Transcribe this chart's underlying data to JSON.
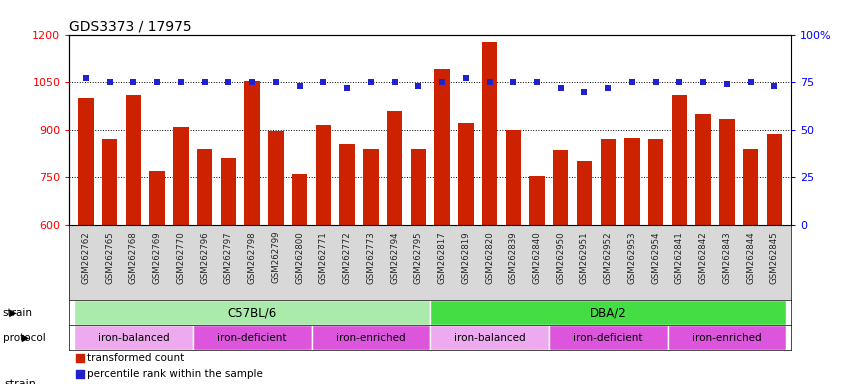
{
  "title": "GDS3373 / 17975",
  "samples": [
    "GSM262762",
    "GSM262765",
    "GSM262768",
    "GSM262769",
    "GSM262770",
    "GSM262796",
    "GSM262797",
    "GSM262798",
    "GSM262799",
    "GSM262800",
    "GSM262771",
    "GSM262772",
    "GSM262773",
    "GSM262794",
    "GSM262795",
    "GSM262817",
    "GSM262819",
    "GSM262820",
    "GSM262839",
    "GSM262840",
    "GSM262950",
    "GSM262951",
    "GSM262952",
    "GSM262953",
    "GSM262954",
    "GSM262841",
    "GSM262842",
    "GSM262843",
    "GSM262844",
    "GSM262845"
  ],
  "bar_values": [
    1000,
    870,
    1010,
    770,
    910,
    840,
    810,
    1055,
    895,
    760,
    915,
    855,
    840,
    960,
    840,
    1090,
    920,
    1175,
    900,
    755,
    835,
    800,
    870,
    875,
    870,
    1010,
    950,
    935,
    840,
    885
  ],
  "percentile_values": [
    77,
    75,
    75,
    75,
    75,
    75,
    75,
    75,
    75,
    73,
    75,
    72,
    75,
    75,
    73,
    75,
    77,
    75,
    75,
    75,
    72,
    70,
    72,
    75,
    75,
    75,
    75,
    74,
    75,
    73
  ],
  "ylim_left": [
    600,
    1200
  ],
  "ylim_right": [
    0,
    100
  ],
  "yticks_left": [
    600,
    750,
    900,
    1050,
    1200
  ],
  "yticks_right": [
    0,
    25,
    50,
    75,
    100
  ],
  "ytick_right_labels": [
    "0",
    "25",
    "50",
    "75",
    "100%"
  ],
  "bar_color": "#cc2200",
  "dot_color": "#2222cc",
  "bg_color": "#ffffff",
  "strain_groups": [
    {
      "label": "C57BL/6",
      "start": 0,
      "end": 15,
      "color": "#aaeaaa"
    },
    {
      "label": "DBA/2",
      "start": 15,
      "end": 30,
      "color": "#44dd44"
    }
  ],
  "protocol_groups": [
    {
      "label": "iron-balanced",
      "start": 0,
      "end": 5,
      "color": "#eeaaee"
    },
    {
      "label": "iron-deficient",
      "start": 5,
      "end": 10,
      "color": "#dd55dd"
    },
    {
      "label": "iron-enriched",
      "start": 10,
      "end": 15,
      "color": "#dd55dd"
    },
    {
      "label": "iron-balanced",
      "start": 15,
      "end": 20,
      "color": "#eeaaee"
    },
    {
      "label": "iron-deficient",
      "start": 20,
      "end": 25,
      "color": "#dd55dd"
    },
    {
      "label": "iron-enriched",
      "start": 25,
      "end": 30,
      "color": "#dd55dd"
    }
  ],
  "legend_bar_label": "transformed count",
  "legend_dot_label": "percentile rank within the sample"
}
